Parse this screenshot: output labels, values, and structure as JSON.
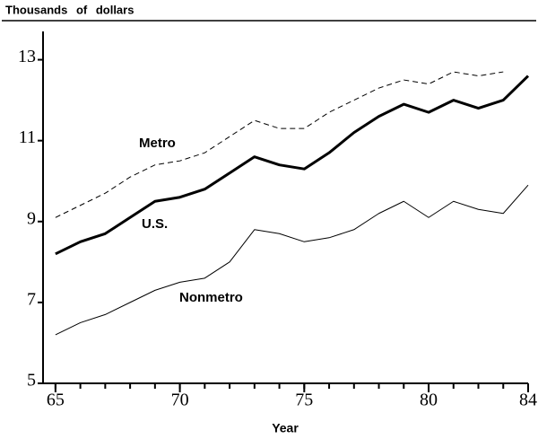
{
  "chart_data": {
    "type": "line",
    "title": "Thousands of dollars",
    "xlabel": "Year",
    "x": [
      65,
      66,
      67,
      68,
      69,
      70,
      71,
      72,
      73,
      74,
      75,
      76,
      77,
      78,
      79,
      80,
      81,
      82,
      83,
      84
    ],
    "series": [
      {
        "name": "Metro",
        "color": "#000000",
        "style": "dashed",
        "width": 1,
        "values": [
          9.1,
          9.4,
          9.7,
          10.1,
          10.4,
          10.5,
          10.7,
          11.1,
          11.5,
          11.3,
          11.3,
          11.7,
          12.0,
          12.3,
          12.5,
          12.4,
          12.7,
          12.6,
          12.7,
          null
        ]
      },
      {
        "name": "U.S.",
        "color": "#000000",
        "style": "solid",
        "width": 3,
        "values": [
          8.2,
          8.5,
          8.7,
          9.1,
          9.5,
          9.6,
          9.8,
          10.2,
          10.6,
          10.4,
          10.3,
          10.7,
          11.2,
          11.6,
          11.9,
          11.7,
          12.0,
          11.8,
          12.0,
          12.6
        ]
      },
      {
        "name": "Nonmetro",
        "color": "#000000",
        "style": "solid",
        "width": 1,
        "values": [
          6.2,
          6.5,
          6.7,
          7.0,
          7.3,
          7.5,
          7.6,
          8.0,
          8.8,
          8.7,
          8.5,
          8.6,
          8.8,
          9.2,
          9.5,
          9.1,
          9.5,
          9.3,
          9.2,
          9.9
        ]
      }
    ],
    "xlim": [
      64.5,
      84
    ],
    "xticks": [
      65,
      70,
      75,
      80,
      84
    ],
    "ylim": [
      5,
      13.7
    ],
    "yticks": [
      5,
      7,
      9,
      11,
      13
    ]
  }
}
